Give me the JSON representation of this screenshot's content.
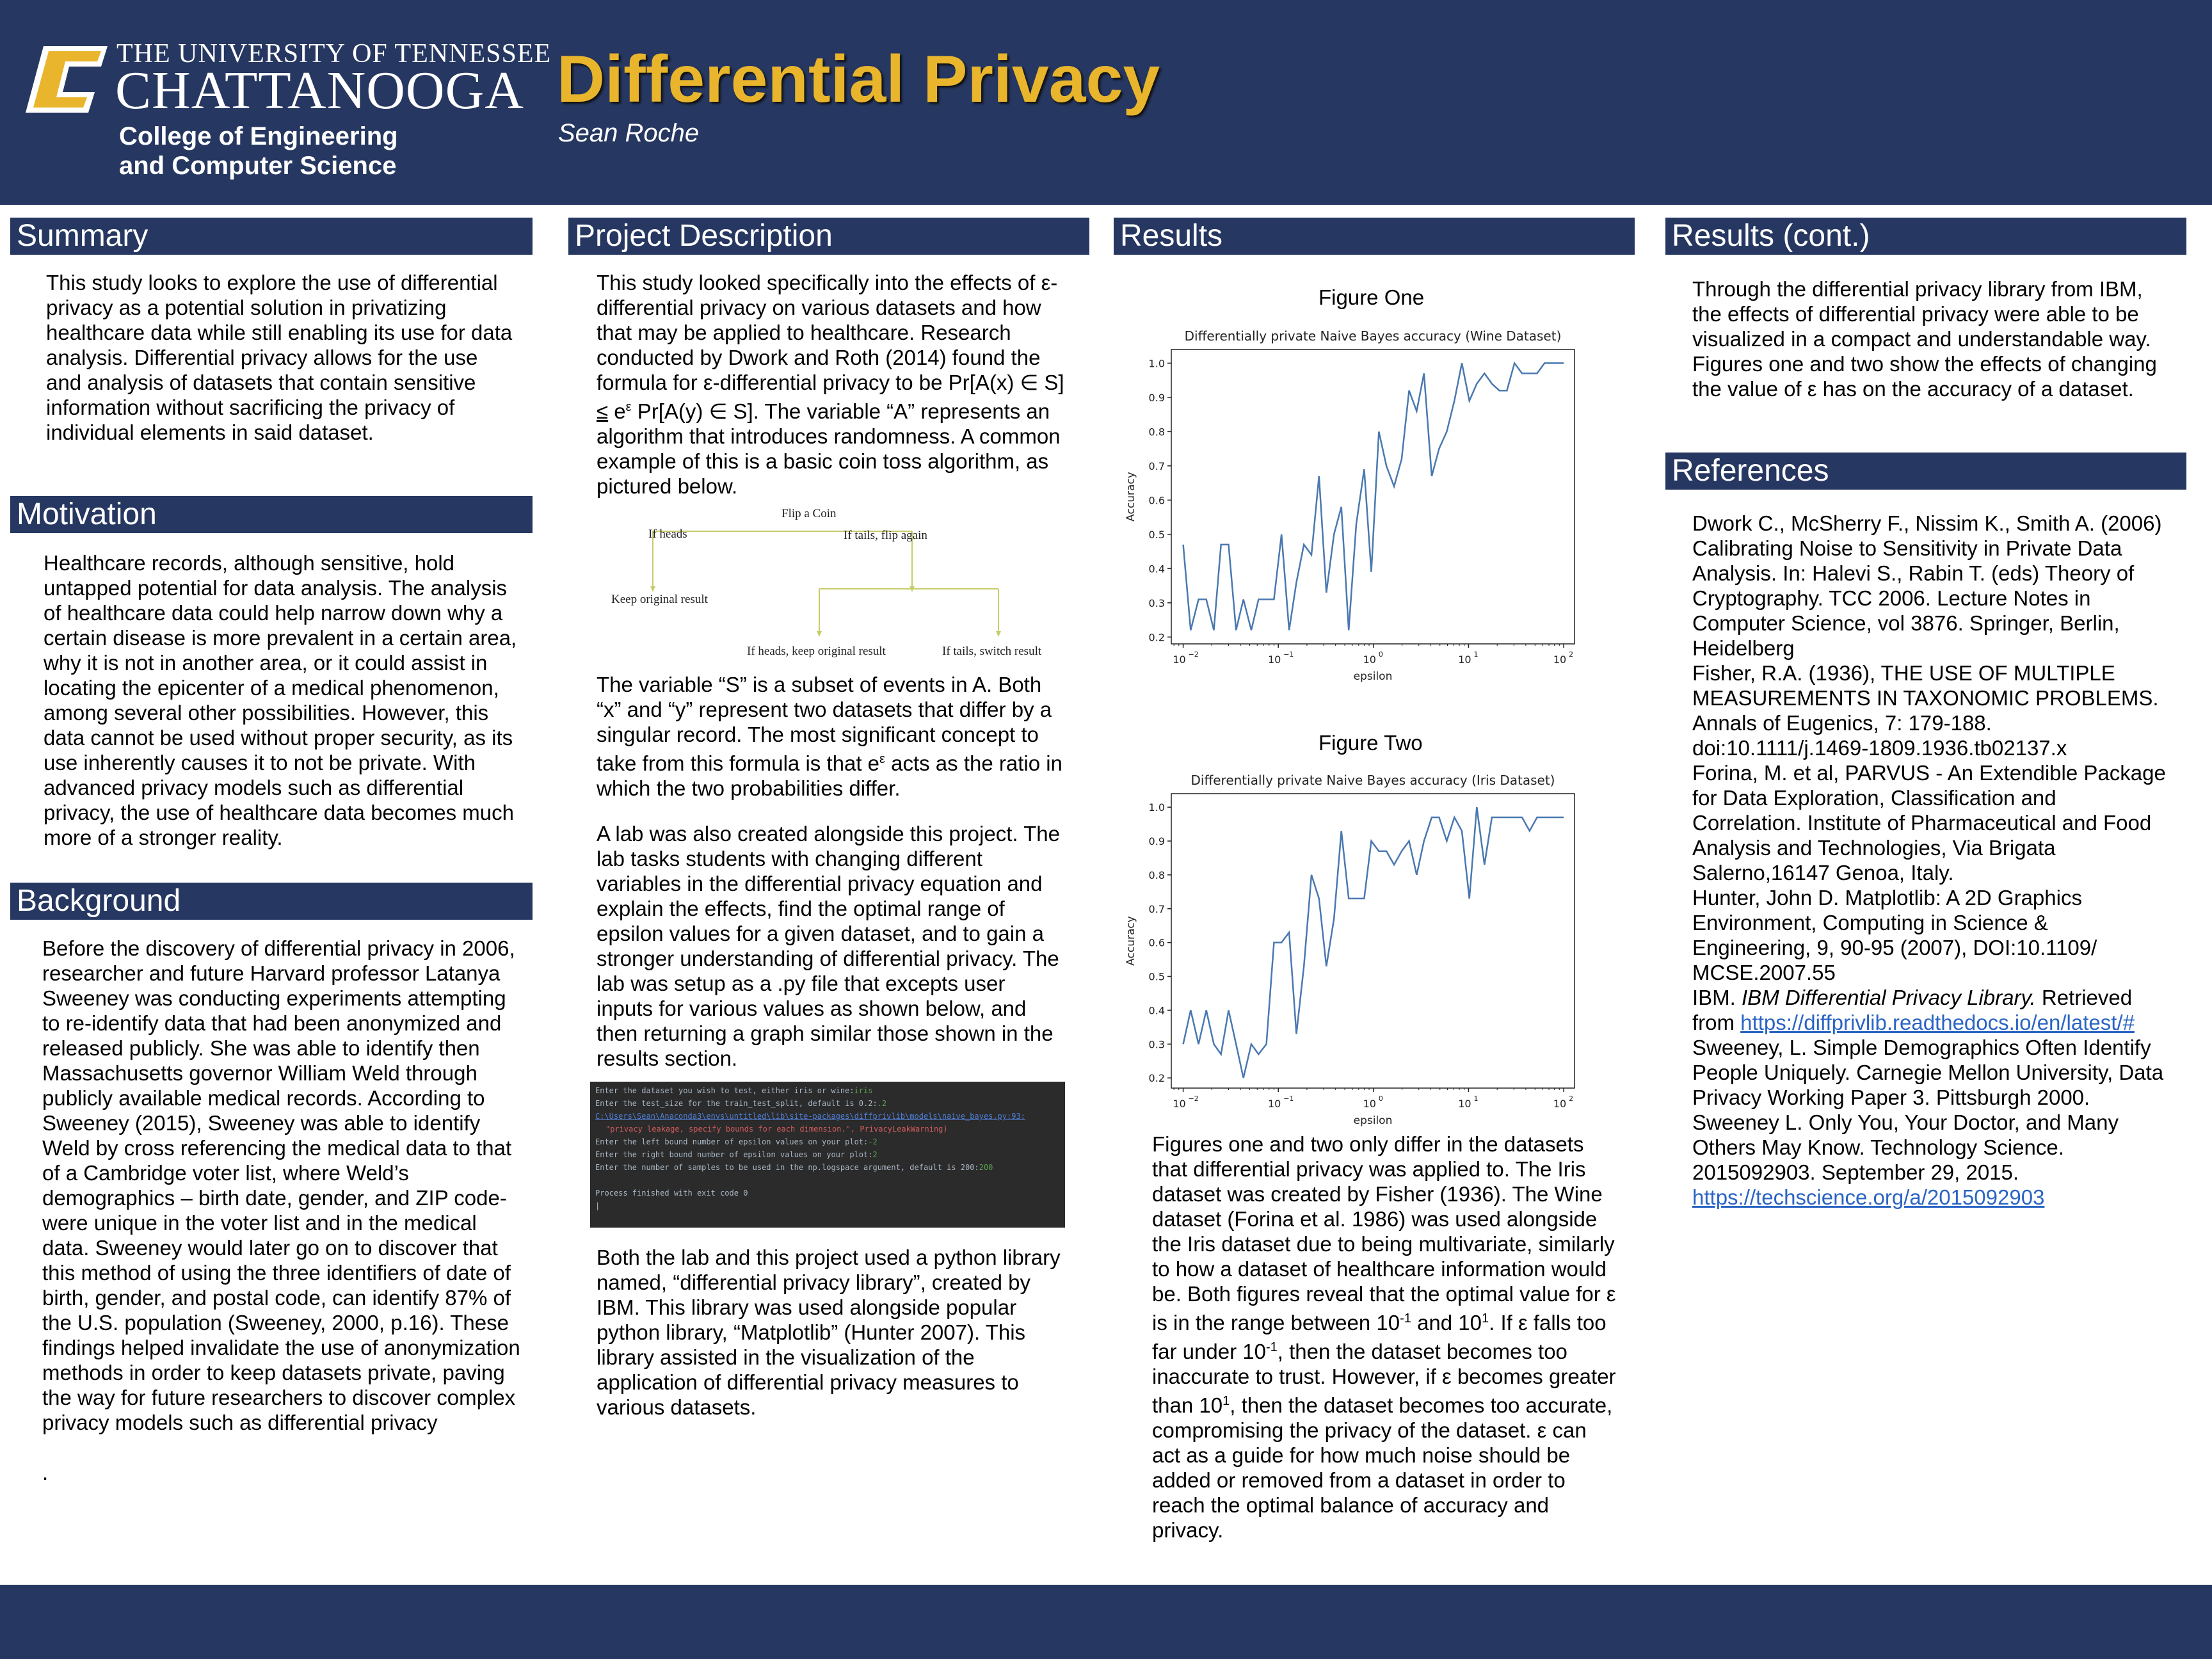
{
  "header": {
    "university_line1": "THE UNIVERSITY OF TENNESSEE",
    "university_line2": "CHATTANOOGA",
    "college_line1": "College of Engineering",
    "college_line2": "and Computer Science",
    "title": "Differential Privacy",
    "author": "Sean Roche",
    "colors": {
      "navy": "#263761",
      "gold": "#e8b52c"
    }
  },
  "summary": {
    "heading": "Summary",
    "text": "This study looks to explore the use of differential privacy as a potential solution in privatizing healthcare data while still enabling its use for data analysis. Differential privacy allows for the use and analysis of datasets that contain sensitive information without sacrificing the privacy of individual elements in said dataset."
  },
  "motivation": {
    "heading": "Motivation",
    "text": "Healthcare records, although sensitive, hold untapped potential for data analysis. The analysis of healthcare data could help narrow down why a certain disease is more prevalent in a certain area, why it is not in another area, or it could assist in locating the epicenter of a medical phenomenon, among several other possibilities. However, this data cannot be used without proper security, as its use inherently causes it to not be private. With advanced privacy models such as differential privacy, the use of healthcare data becomes much more of a stronger reality."
  },
  "background": {
    "heading": "Background",
    "text": "Before the discovery of differential privacy in 2006, researcher and future Harvard professor Latanya Sweeney was conducting experiments attempting to re-identify data that had been anonymized and released publicly. She was able to identify then Massachusetts governor William Weld through publicly available medical records. According to Sweeney (2015), Sweeney was able to identify Weld by cross referencing the medical data to that of a Cambridge voter list, where Weld’s demographics – birth date, gender, and ZIP code- were unique in the voter list and in the medical data. Sweeney would later go on to discover that this method of using the three identifiers of date of birth, gender, and postal code, can identify 87% of the U.S. population (Sweeney, 2000, p.16). These findings helped invalidate the use of anonymization methods in order to keep datasets private, paving the way for future researchers to discover complex privacy models such as differential privacy",
    "trailing": "."
  },
  "project": {
    "heading": "Project Description",
    "para1_a": "This study looked specifically into the effects of ε-differential privacy on various datasets and how that may be applied to healthcare. Research conducted by Dwork and Roth (2014) found the formula for ε-differential privacy to be Pr[A(x) ∈ S] ",
    "para1_leq": "≤",
    "para1_e": " e",
    "para1_sup": "ε",
    "para1_b": " Pr[A(y) ∈ S]. The variable “A” represents an algorithm that introduces randomness. A common example of this is a basic coin toss algorithm, as pictured below.",
    "tree": {
      "root": "Flip a Coin",
      "left": "If heads",
      "right": "If tails, flip again",
      "left_leaf": "Keep original result",
      "right_left_leaf": "If heads, keep original result",
      "right_right_leaf": "If tails, switch result"
    },
    "para2_a": "The variable “S” is a subset of events in A. Both “x” and “y” represent two datasets that differ by a singular record. The most significant concept to take from this formula is that e",
    "para2_sup": "ε",
    "para2_b": " acts as the ratio in which the two probabilities differ.",
    "para3": "A lab was also created alongside this project. The lab tasks students with changing different variables in the differential privacy equation and explain the effects, find the optimal range of epsilon values for a given dataset, and to gain a stronger understanding of differential privacy. The lab was setup as a .py file that excepts user inputs for various values as shown below, and then returning a graph similar those shown in the results section.",
    "terminal": {
      "line1": "Enter the dataset you wish to test, either iris or wine:",
      "line1_input": "iris",
      "line2": "Enter the test_size for the train_test_split, default is 0.2:",
      "line2_input": ".2",
      "line3": "C:\\Users\\Sean\\Anaconda3\\envs\\untitled\\lib\\site-packages\\diffprivlib\\models\\naive_bayes.py:93:",
      "line4": "\"privacy leakage, specify bounds for each dimension.\", PrivacyLeakWarning)",
      "line5": "Enter the left bound number of epsilon values on your plot:",
      "line5_input": "-2",
      "line6": "Enter the right bound number of epsilon values on your plot:",
      "line6_input": "2",
      "line7": "Enter the number of samples to be used in the np.logspace argument, default is 200:",
      "line7_input": "200",
      "line8": "Process finished with exit code 0",
      "cursor": "|"
    },
    "para4": "Both the lab and this project used a python library named, “differential privacy library”, created by IBM. This library was used alongside popular python library, “Matplotlib” (Hunter 2007). This library assisted in the visualization of the application of differential privacy measures to various datasets."
  },
  "results": {
    "heading": "Results",
    "fig1_label": "Figure One",
    "fig2_label": "Figure Two",
    "text_a": "Figures one and two only differ in the datasets that differential privacy was applied to. The Iris dataset was created by Fisher (1936). The Wine dataset (Forina et al. 1986) was used alongside the Iris dataset due to being multivariate, similarly to how a dataset of healthcare information would be. Both figures reveal that the optimal value for ε is in the range between 10",
    "sup1": "-1",
    "text_b": " and 10",
    "sup2": "1",
    "text_c": ". If ε falls too far under 10",
    "sup3": "-1",
    "text_d": ", then the dataset becomes too inaccurate to trust. However, if ε becomes greater than 10",
    "sup4": "1",
    "text_e": ", then the dataset becomes too accurate, compromising the privacy of the dataset. ε can act as a guide for how much noise should be added or removed from a dataset in order to reach the optimal balance of accuracy and privacy."
  },
  "results_cont": {
    "heading": "Results (cont.)",
    "text": "Through the differential privacy library from IBM, the effects of differential privacy were able to be visualized in a compact and understandable way. Figures one and two show the effects of changing the value of ε has on the accuracy of a dataset."
  },
  "references": {
    "heading": "References",
    "r1": "Dwork C., McSherry F., Nissim K., Smith A. (2006) Calibrating Noise to Sensitivity in Private Data Analysis. In: Halevi S., Rabin T. (eds) Theory of Cryptography. TCC 2006. Lecture Notes in Computer Science, vol 3876. Springer, Berlin, Heidelberg",
    "r2": "Fisher, R.A. (1936), THE USE OF MULTIPLE MEASUREMENTS IN TAXONOMIC PROBLEMS. Annals of Eugenics, 7: 179-188. doi:10.1111/j.1469-1809.1936.tb02137.x",
    "r3": "Forina, M. et al, PARVUS - An Extendible Package for Data Exploration, Classification and Correlation. Institute of Pharmaceutical and Food Analysis and Technologies, Via Brigata Salerno,16147 Genoa, Italy.",
    "r4": "Hunter, John D. Matplotlib: A 2D Graphics Environment, Computing in Science & Engineering, 9, 90-95 (2007), DOI:10.1109/ MCSE.2007.55",
    "r5_a": "IBM. ",
    "r5_italic": "IBM Differential Privacy Library.",
    "r5_b": " Retrieved from ",
    "r5_link": "https://diffprivlib.readthedocs.io/en/latest/#",
    "r6": "Sweeney, L. Simple Demographics Often Identify People Uniquely. Carnegie Mellon University, Data Privacy Working Paper 3. Pittsburgh 2000.",
    "r7_a": "Sweeney L. Only You, Your Doctor, and Many Others May Know. Technology Science. 2015092903. September 29, 2015. ",
    "r7_link": "https://techscience.org/a/2015092903"
  },
  "chart_data": [
    {
      "type": "line",
      "title": "Differentially private Naive Bayes accuracy (Wine Dataset)",
      "xlabel": "epsilon",
      "ylabel": "Accuracy",
      "xscale": "log",
      "xlim": [
        0.0075,
        130
      ],
      "ylim": [
        0.18,
        1.04
      ],
      "xticks": [
        0.01,
        0.1,
        1,
        10,
        100
      ],
      "xtick_labels": [
        "10",
        "10",
        "10",
        "10",
        "10"
      ],
      "xtick_exps": [
        "−2",
        "−1",
        "0",
        "1",
        "2"
      ],
      "yticks": [
        0.2,
        0.3,
        0.4,
        0.5,
        0.6,
        0.7,
        0.8,
        0.9,
        1.0
      ],
      "ytick_labels": [
        "0.2",
        "0.3",
        "0.4",
        "0.5",
        "0.6",
        "0.7",
        "0.8",
        "0.9",
        "1.0"
      ],
      "color": "#4a78b0",
      "x": [
        0.01,
        0.012,
        0.0145,
        0.0175,
        0.021,
        0.025,
        0.03,
        0.036,
        0.043,
        0.052,
        0.062,
        0.075,
        0.09,
        0.108,
        0.13,
        0.155,
        0.186,
        0.223,
        0.268,
        0.32,
        0.385,
        0.46,
        0.55,
        0.66,
        0.8,
        0.95,
        1.14,
        1.37,
        1.65,
        1.98,
        2.37,
        2.85,
        3.4,
        4.1,
        4.9,
        5.9,
        7.1,
        8.5,
        10.2,
        12.2,
        14.7,
        17.6,
        21.1,
        25.3,
        30.4,
        36.5,
        43.8,
        52.5,
        63,
        75.6,
        90.7,
        100
      ],
      "y": [
        0.47,
        0.22,
        0.31,
        0.31,
        0.22,
        0.47,
        0.47,
        0.22,
        0.31,
        0.22,
        0.31,
        0.31,
        0.31,
        0.5,
        0.22,
        0.36,
        0.47,
        0.44,
        0.67,
        0.33,
        0.5,
        0.58,
        0.22,
        0.53,
        0.69,
        0.39,
        0.8,
        0.7,
        0.64,
        0.72,
        0.92,
        0.86,
        0.97,
        0.67,
        0.75,
        0.8,
        0.89,
        1.0,
        0.89,
        0.94,
        0.97,
        0.94,
        0.92,
        0.92,
        1.0,
        0.97,
        0.97,
        0.97,
        1.0,
        1.0,
        1.0,
        1.0
      ]
    },
    {
      "type": "line",
      "title": "Differentially private Naive Bayes accuracy (Iris Dataset)",
      "xlabel": "epsilon",
      "ylabel": "Accuracy",
      "xscale": "log",
      "xlim": [
        0.0075,
        130
      ],
      "ylim": [
        0.17,
        1.04
      ],
      "xticks": [
        0.01,
        0.1,
        1,
        10,
        100
      ],
      "xtick_labels": [
        "10",
        "10",
        "10",
        "10",
        "10"
      ],
      "xtick_exps": [
        "−2",
        "−1",
        "0",
        "1",
        "2"
      ],
      "yticks": [
        0.2,
        0.3,
        0.4,
        0.5,
        0.6,
        0.7,
        0.8,
        0.9,
        1.0
      ],
      "ytick_labels": [
        "0.2",
        "0.3",
        "0.4",
        "0.5",
        "0.6",
        "0.7",
        "0.8",
        "0.9",
        "1.0"
      ],
      "color": "#4a78b0",
      "x": [
        0.01,
        0.012,
        0.0145,
        0.0175,
        0.021,
        0.025,
        0.03,
        0.036,
        0.043,
        0.052,
        0.062,
        0.075,
        0.09,
        0.108,
        0.13,
        0.155,
        0.186,
        0.223,
        0.268,
        0.32,
        0.385,
        0.46,
        0.55,
        0.66,
        0.8,
        0.95,
        1.14,
        1.37,
        1.65,
        1.98,
        2.37,
        2.85,
        3.4,
        4.1,
        4.9,
        5.9,
        7.1,
        8.5,
        10.2,
        12.2,
        14.7,
        17.6,
        21.1,
        25.3,
        30.4,
        36.5,
        43.8,
        52.5,
        63,
        75.6,
        90.7,
        100
      ],
      "y": [
        0.3,
        0.4,
        0.3,
        0.4,
        0.3,
        0.27,
        0.4,
        0.3,
        0.2,
        0.3,
        0.27,
        0.3,
        0.6,
        0.6,
        0.63,
        0.33,
        0.53,
        0.8,
        0.73,
        0.53,
        0.67,
        0.93,
        0.73,
        0.73,
        0.73,
        0.9,
        0.87,
        0.87,
        0.83,
        0.87,
        0.9,
        0.8,
        0.9,
        0.97,
        0.97,
        0.9,
        0.97,
        0.93,
        0.73,
        1.0,
        0.83,
        0.97,
        0.97,
        0.97,
        0.97,
        0.97,
        0.93,
        0.97,
        0.97,
        0.97,
        0.97,
        0.97
      ]
    }
  ]
}
